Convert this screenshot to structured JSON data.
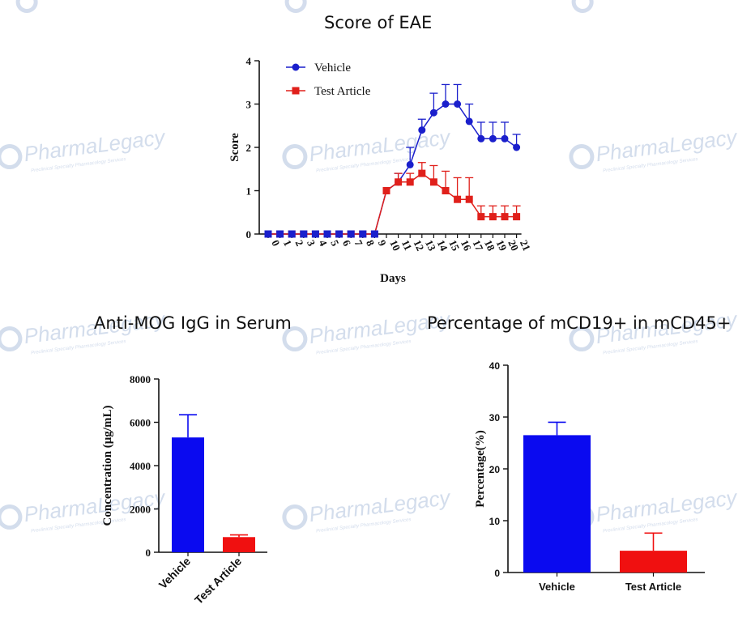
{
  "watermark": {
    "brand_a": "Pharma",
    "brand_b": "Legacy",
    "tagline": "Preclinical Specialty Pharmacology Services",
    "color": "#9fb4d6"
  },
  "chart_data": [
    {
      "id": "eae",
      "type": "line",
      "title": "Score of EAE",
      "xlabel": "Days",
      "ylabel": "Score",
      "ylim": [
        0,
        4
      ],
      "yticks": [
        0,
        1,
        2,
        3,
        4
      ],
      "x": [
        0,
        1,
        2,
        3,
        4,
        5,
        6,
        7,
        8,
        9,
        10,
        11,
        12,
        13,
        14,
        15,
        16,
        17,
        18,
        19,
        20,
        21
      ],
      "legend": "top-left",
      "series": [
        {
          "name": "Vehicle",
          "color": "#1a1fcc",
          "marker": "circle",
          "values": [
            0,
            0,
            0,
            0,
            0,
            0,
            0,
            0,
            0,
            0,
            1.0,
            1.2,
            1.6,
            2.4,
            2.8,
            3.0,
            3.0,
            2.6,
            2.2,
            2.2,
            2.2,
            2.0
          ],
          "errors": [
            0,
            0,
            0,
            0,
            0,
            0,
            0,
            0,
            0,
            0,
            0,
            0.2,
            0.4,
            0.25,
            0.45,
            0.45,
            0.45,
            0.4,
            0.38,
            0.38,
            0.38,
            0.3
          ]
        },
        {
          "name": "Test Article",
          "color": "#e0201b",
          "marker": "square",
          "values": [
            0,
            0,
            0,
            0,
            0,
            0,
            0,
            0,
            0,
            0,
            1.0,
            1.2,
            1.2,
            1.4,
            1.2,
            1.0,
            0.8,
            0.8,
            0.4,
            0.4,
            0.4,
            0.4
          ],
          "errors": [
            0,
            0,
            0,
            0,
            0,
            0,
            0,
            0,
            0,
            0,
            0,
            0.2,
            0.2,
            0.25,
            0.38,
            0.45,
            0.5,
            0.5,
            0.25,
            0.25,
            0.25,
            0.25
          ]
        }
      ]
    },
    {
      "id": "mog",
      "type": "bar",
      "title": "Anti-MOG IgG in Serum",
      "xlabel": "",
      "ylabel": "Concentration (μg/mL)",
      "ylim": [
        0,
        8000
      ],
      "yticks": [
        0,
        2000,
        4000,
        6000,
        8000
      ],
      "categories": [
        "Vehicle",
        "Test Article"
      ],
      "values": [
        5300,
        700
      ],
      "errors": [
        1050,
        100
      ],
      "colors": [
        "#0a0af0",
        "#f01010"
      ]
    },
    {
      "id": "cd19",
      "type": "bar",
      "title": "Percentage of mCD19+ in mCD45+",
      "xlabel": "",
      "ylabel": "Percentage(%)",
      "ylim": [
        0,
        40
      ],
      "yticks": [
        0,
        10,
        20,
        30,
        40
      ],
      "categories": [
        "Vehicle",
        "Test Article"
      ],
      "values": [
        26.5,
        4.2
      ],
      "errors": [
        2.5,
        3.4
      ],
      "colors": [
        "#0a0af0",
        "#f01010"
      ]
    }
  ]
}
